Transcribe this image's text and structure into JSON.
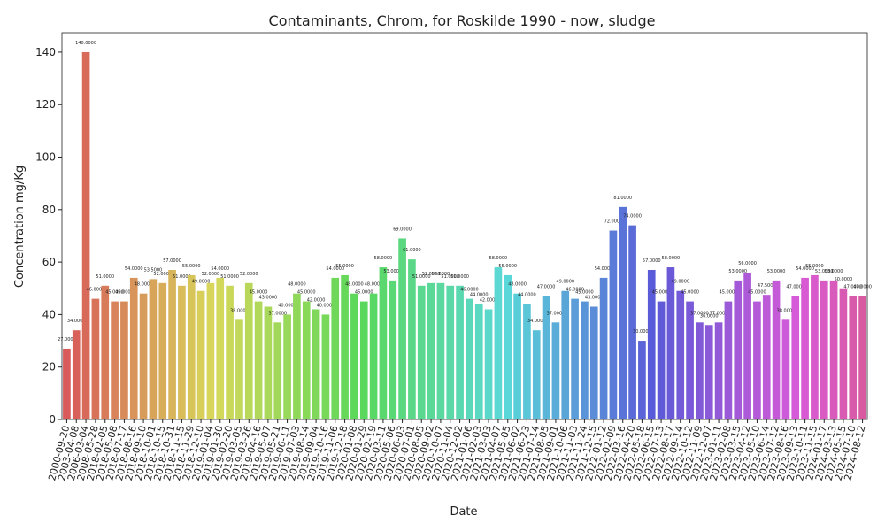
{
  "chart_data": {
    "type": "bar",
    "title": "Contaminants, Chrom, for Roskilde 1990 - now, sludge",
    "x_label": "Date",
    "y_label": "Concentration mg/Kg",
    "palette": "husl",
    "categories": [
      "2000-09-20",
      "2003-04-08",
      "2006-03-04",
      "2008-05-28",
      "2018-02-05",
      "2018-05-08",
      "2018-07-17",
      "2018-08-16",
      "2018-09-10",
      "2018-10-01",
      "2018-10-15",
      "2018-10-31",
      "2018-11-15",
      "2018-11-29",
      "2018-12-10",
      "2019-01-04",
      "2019-01-30",
      "2019-02-20",
      "2019-03-05",
      "2019-03-26",
      "2019-04-16",
      "2019-05-07",
      "2019-05-21",
      "2019-06-11",
      "2019-07-03",
      "2019-08-14",
      "2019-09-04",
      "2019-10-16",
      "2019-11-06",
      "2019-12-18",
      "2020-01-08",
      "2020-01-29",
      "2020-02-19",
      "2020-03-11",
      "2020-05-06",
      "2020-06-03",
      "2020-07-01",
      "2020-08-05",
      "2020-09-02",
      "2020-10-07",
      "2020-11-04",
      "2020-12-02",
      "2021-01-06",
      "2021-02-03",
      "2021-03-03",
      "2021-04-07",
      "2021-05-05",
      "2021-06-02",
      "2021-06-23",
      "2021-07-14",
      "2021-08-05",
      "2021-09-01",
      "2021-10-06",
      "2021-11-03",
      "2021-11-24",
      "2021-12-15",
      "2022-01-12",
      "2022-02-09",
      "2022-03-16",
      "2022-04-20",
      "2022-05-18",
      "2022-06-15",
      "2022-07-13",
      "2022-08-17",
      "2022-09-14",
      "2022-10-12",
      "2022-11-09",
      "2022-12-07",
      "2023-01-11",
      "2023-02-08",
      "2023-03-15",
      "2023-04-12",
      "2023-05-10",
      "2023-06-14",
      "2023-07-12",
      "2023-08-16",
      "2023-09-13",
      "2023-10-11",
      "2023-11-15",
      "2024-01-17",
      "2024-03-13",
      "2024-05-15",
      "2024-07-10",
      "2024-08-12"
    ],
    "values": [
      27,
      34,
      140,
      46,
      51,
      45,
      45,
      54,
      48,
      53.5,
      52,
      57,
      51,
      55,
      49,
      52,
      54,
      51,
      38,
      52,
      45,
      43,
      37,
      40,
      48,
      45,
      42,
      40,
      54,
      55,
      48,
      45,
      48,
      58,
      53,
      69,
      61,
      51,
      52,
      52,
      51,
      51,
      46,
      44,
      42,
      58,
      55,
      48,
      44,
      34,
      47,
      37,
      49,
      46,
      45,
      43,
      54,
      72,
      81,
      74,
      30,
      57,
      45,
      58,
      49,
      45,
      37,
      36,
      37,
      45,
      53,
      56,
      45,
      47.5,
      53,
      38,
      47,
      54,
      55,
      53,
      53,
      50,
      47,
      47
    ],
    "value_labels": [
      "27.0000",
      "34.0000",
      "140.0000",
      "46.0000",
      "51.0000",
      "45.0000",
      "45.0000",
      "54.0000",
      "48.0000",
      "53.5000",
      "52.0000",
      "57.0000",
      "51.0000",
      "55.0000",
      "49.0000",
      "52.0000",
      "54.0000",
      "51.0000",
      "38.0000",
      "52.0000",
      "45.0000",
      "43.0000",
      "37.0000",
      "40.0000",
      "48.0000",
      "45.0000",
      "42.0000",
      "40.0000",
      "54.0000",
      "55.0000",
      "48.0000",
      "45.0000",
      "48.0000",
      "58.0000",
      "53.0000",
      "69.0000",
      "61.0000",
      "51.0000",
      "52.0000",
      "52.0000",
      "51.0000",
      "51.0000",
      "46.0000",
      "44.0000",
      "42.0000",
      "58.0000",
      "55.0000",
      "48.0000",
      "44.0000",
      "34.0000",
      "47.0000",
      "37.0000",
      "49.0000",
      "46.0000",
      "45.0000",
      "43.0000",
      "54.0000",
      "72.0000",
      "81.0000",
      "74.0000",
      "30.0000",
      "57.0000",
      "45.0000",
      "58.0000",
      "49.0000",
      "45.0000",
      "37.0000",
      "36.0000",
      "37.0000",
      "45.0000",
      "53.0000",
      "56.0000",
      "45.0000",
      "47.5000",
      "53.0000",
      "38.0000",
      "47.0000",
      "54.0000",
      "55.0000",
      "53.0000",
      "53.0000",
      "50.0000",
      "47.0000",
      "47.0000"
    ],
    "ylim": [
      0,
      147.4
    ],
    "yticks": [
      0,
      20,
      40,
      60,
      80,
      100,
      120,
      140
    ]
  }
}
